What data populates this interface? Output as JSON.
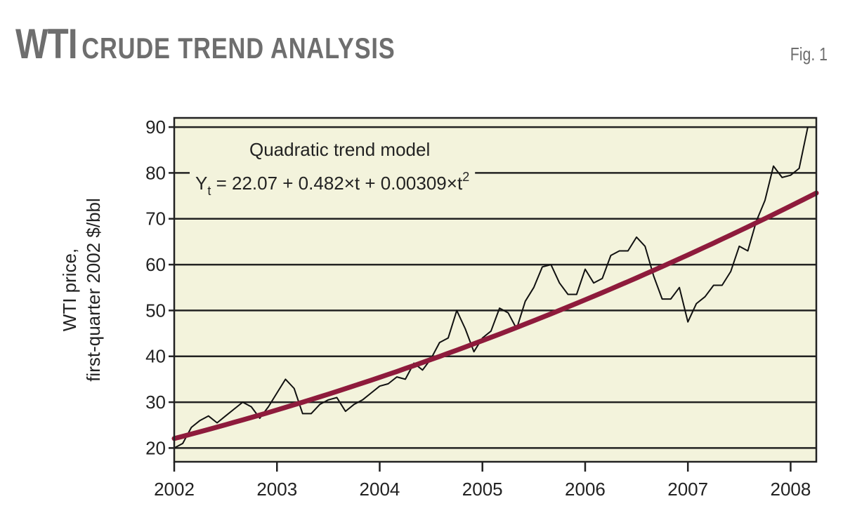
{
  "header": {
    "title_big": "WTI",
    "title_small": "CRUDE TREND ANALYSIS",
    "fig_label": "Fig. 1"
  },
  "chart_data": {
    "type": "line",
    "xlim": [
      2002,
      2008.25
    ],
    "ylim": [
      17,
      92
    ],
    "yticks": [
      20,
      30,
      40,
      50,
      60,
      70,
      80,
      90
    ],
    "xticks": [
      2002,
      2003,
      2004,
      2005,
      2006,
      2007,
      2008
    ],
    "ylabel_line1": "WTI price,",
    "ylabel_line2": "first-quarter 2002 $/bbl",
    "grid": "horizontal",
    "colors": {
      "plot_bg": "#f3f3dc",
      "price": "#111111",
      "trend": "#8e1b3c",
      "grid": "#222222"
    },
    "annotation": {
      "line1": "Quadratic trend model",
      "eq_prefix": "Y",
      "eq_sub": "t",
      "eq_body": " = 22.07 + 0.482×t + 0.00309×t",
      "eq_sup": "2"
    },
    "trend_model": {
      "a": 22.07,
      "b": 0.482,
      "c": 0.00309,
      "t_start": 2002,
      "t_units": "months"
    },
    "series": [
      {
        "points": [
          [
            2002.0,
            20.0
          ],
          [
            2002.083,
            21.0
          ],
          [
            2002.167,
            24.5
          ],
          [
            2002.25,
            26.0
          ],
          [
            2002.333,
            27.0
          ],
          [
            2002.417,
            25.5
          ],
          [
            2002.5,
            27.0
          ],
          [
            2002.583,
            28.5
          ],
          [
            2002.667,
            30.0
          ],
          [
            2002.75,
            29.0
          ],
          [
            2002.833,
            26.5
          ],
          [
            2002.917,
            29.0
          ],
          [
            2003.0,
            32.0
          ],
          [
            2003.083,
            35.0
          ],
          [
            2003.167,
            33.0
          ],
          [
            2003.25,
            27.5
          ],
          [
            2003.333,
            27.5
          ],
          [
            2003.417,
            29.5
          ],
          [
            2003.5,
            30.5
          ],
          [
            2003.583,
            31.0
          ],
          [
            2003.667,
            28.0
          ],
          [
            2003.75,
            29.5
          ],
          [
            2003.833,
            30.5
          ],
          [
            2003.917,
            32.0
          ],
          [
            2004.0,
            33.5
          ],
          [
            2004.083,
            34.0
          ],
          [
            2004.167,
            35.5
          ],
          [
            2004.25,
            35.0
          ],
          [
            2004.333,
            38.5
          ],
          [
            2004.417,
            37.0
          ],
          [
            2004.5,
            39.5
          ],
          [
            2004.583,
            43.0
          ],
          [
            2004.667,
            44.0
          ],
          [
            2004.75,
            50.0
          ],
          [
            2004.833,
            46.0
          ],
          [
            2004.917,
            41.0
          ],
          [
            2005.0,
            44.0
          ],
          [
            2005.083,
            45.5
          ],
          [
            2005.167,
            50.5
          ],
          [
            2005.25,
            49.5
          ],
          [
            2005.333,
            46.0
          ],
          [
            2005.417,
            52.0
          ],
          [
            2005.5,
            55.0
          ],
          [
            2005.583,
            59.5
          ],
          [
            2005.667,
            60.0
          ],
          [
            2005.75,
            56.0
          ],
          [
            2005.833,
            53.5
          ],
          [
            2005.917,
            53.5
          ],
          [
            2006.0,
            59.0
          ],
          [
            2006.083,
            56.0
          ],
          [
            2006.167,
            57.0
          ],
          [
            2006.25,
            62.0
          ],
          [
            2006.333,
            63.0
          ],
          [
            2006.417,
            63.0
          ],
          [
            2006.5,
            66.0
          ],
          [
            2006.583,
            64.0
          ],
          [
            2006.667,
            57.5
          ],
          [
            2006.75,
            52.5
          ],
          [
            2006.833,
            52.5
          ],
          [
            2006.917,
            55.0
          ],
          [
            2007.0,
            47.5
          ],
          [
            2007.083,
            51.5
          ],
          [
            2007.167,
            53.0
          ],
          [
            2007.25,
            55.5
          ],
          [
            2007.333,
            55.5
          ],
          [
            2007.417,
            58.5
          ],
          [
            2007.5,
            64.0
          ],
          [
            2007.583,
            63.0
          ],
          [
            2007.667,
            69.5
          ],
          [
            2007.75,
            74.0
          ],
          [
            2007.833,
            81.5
          ],
          [
            2007.917,
            79.0
          ],
          [
            2008.0,
            79.5
          ],
          [
            2008.083,
            81.0
          ],
          [
            2008.167,
            90.0
          ]
        ]
      }
    ]
  }
}
